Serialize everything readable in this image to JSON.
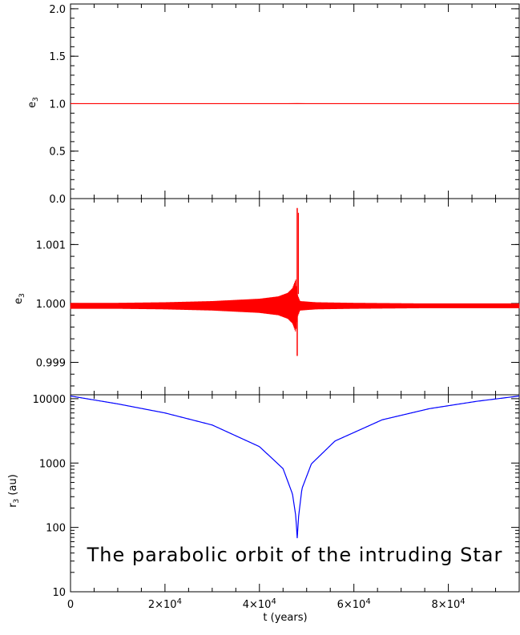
{
  "chart_data": [
    {
      "type": "line",
      "panel": "top",
      "ylabel": "e",
      "ylabel_sub": "3",
      "xlim": [
        0,
        95000
      ],
      "ylim": [
        0.0,
        2.05
      ],
      "y_ticks": [
        0.0,
        0.5,
        1.0,
        1.5,
        2.0
      ],
      "y_tick_labels": [
        "0.0",
        "0.5",
        "1.0",
        "1.5",
        "2.0"
      ],
      "series": [
        {
          "color": "#ff0000",
          "x": [
            0,
            46000,
            48000,
            50000,
            95000
          ],
          "y": [
            1.0,
            1.0,
            1.001,
            1.0,
            1.0
          ]
        }
      ]
    },
    {
      "type": "line",
      "panel": "middle",
      "ylabel": "e",
      "ylabel_sub": "3",
      "xlim": [
        0,
        95000
      ],
      "ylim": [
        0.99845,
        1.00178
      ],
      "y_ticks": [
        0.999,
        1.0,
        1.001
      ],
      "y_tick_labels": [
        "0.999",
        "1.000",
        "1.001"
      ],
      "series": [
        {
          "color": "#ff0000",
          "mean": 0.99996,
          "envelope_x": [
            0,
            10000,
            20000,
            30000,
            40000,
            44000,
            46000,
            47000,
            47700,
            48000,
            48600,
            52000,
            60000,
            75000,
            95000
          ],
          "envelope_amplitude": [
            5e-05,
            5e-05,
            6e-05,
            8e-05,
            0.00012,
            0.00016,
            0.00022,
            0.0003,
            0.00045,
            0.0002,
            8e-05,
            6e-05,
            5e-05,
            4e-05,
            4e-05
          ],
          "spike": {
            "x": 48000,
            "max": 1.00162,
            "min": 0.99911
          }
        }
      ]
    },
    {
      "type": "line",
      "panel": "bottom",
      "ylabel": "r",
      "ylabel_sub": "3",
      "ylabel_unit": " (au)",
      "xlabel": "t (years)",
      "yscale": "log",
      "xlim": [
        0,
        95000
      ],
      "ylim": [
        10,
        11500
      ],
      "y_ticks": [
        10,
        100,
        1000,
        10000
      ],
      "y_tick_labels": [
        "10",
        "100",
        "1000",
        "10000"
      ],
      "x_ticks": [
        0,
        20000,
        40000,
        60000,
        80000
      ],
      "x_tick_labels": [
        {
          "base": "0",
          "exp": ""
        },
        {
          "base": "2×10",
          "exp": "4"
        },
        {
          "base": "4×10",
          "exp": "4"
        },
        {
          "base": "6×10",
          "exp": "4"
        },
        {
          "base": "8×10",
          "exp": "4"
        }
      ],
      "series": [
        {
          "color": "#0000ff",
          "x": [
            0,
            10000,
            20000,
            30000,
            40000,
            45000,
            47000,
            47700,
            48000,
            48300,
            49000,
            51000,
            56000,
            66000,
            76000,
            86000,
            95000
          ],
          "y": [
            11000,
            8300,
            6000,
            3900,
            1800,
            820,
            330,
            150,
            68,
            150,
            400,
            970,
            2200,
            4700,
            7000,
            9100,
            11000
          ]
        }
      ],
      "annotation": "The parabolic orbit of the intruding Star"
    }
  ]
}
